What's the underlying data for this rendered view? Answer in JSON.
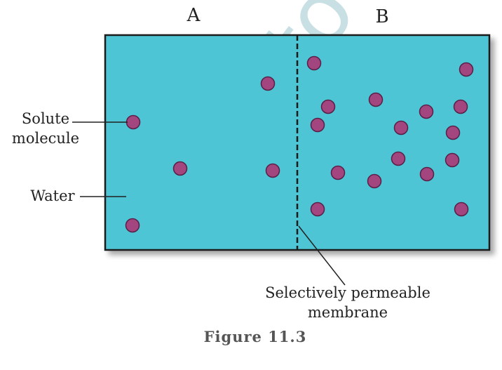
{
  "diagram": {
    "side_a_label": "A",
    "side_b_label": "B",
    "solute_label_line1": "Solute",
    "solute_label_line2": "molecule",
    "water_label": "Water",
    "membrane_label_line1": "Selectively permeable",
    "membrane_label_line2": "membrane",
    "watermark": "not to",
    "caption": "Figure 11.3",
    "colors": {
      "water": "#4ec5d5",
      "molecule": "#a3457f",
      "molecule_outline": "#5a1f46",
      "border": "#1a1a1a"
    }
  }
}
